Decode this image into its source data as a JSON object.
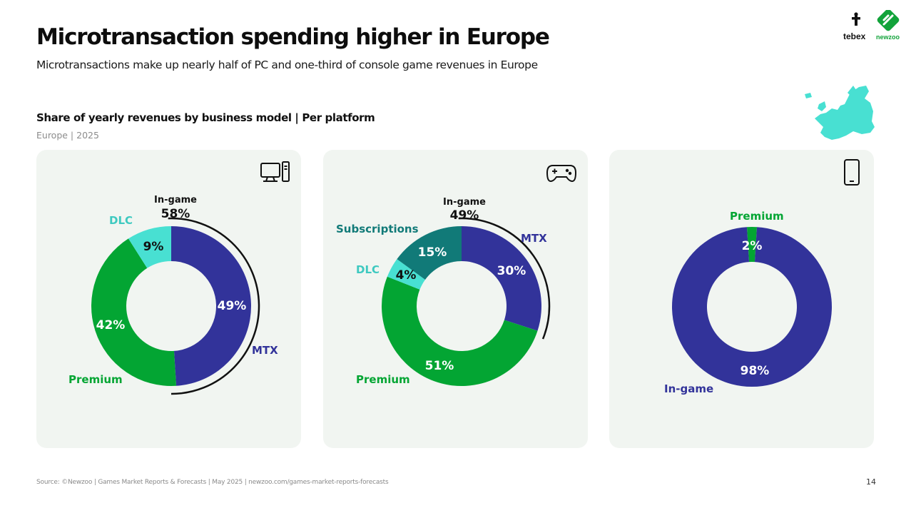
{
  "header": {
    "title": "Microtransaction spending higher in Europe",
    "subtitle": "Microtransactions make up nearly half of PC and one-third of console game revenues in Europe",
    "logo_tebex": "tebex",
    "logo_newzoo": "newzoo"
  },
  "chart_header": {
    "title": "Share of yearly revenues by business model | Per platform",
    "subtitle": "Europe | 2025"
  },
  "icons": {
    "pc": "pc-icon",
    "console": "gamepad-icon",
    "mobile": "smartphone-icon",
    "map": "europe-map-icon"
  },
  "colors": {
    "mtx": "#32339a",
    "premium": "#03a533",
    "dlc": "#48e0d2",
    "subscriptions": "#117a78",
    "panel_bg": "#f1f5f1"
  },
  "chart_data": [
    {
      "type": "pie",
      "platform": "PC",
      "bracket_label": "In-game",
      "bracket_value": "58%",
      "slices": [
        {
          "name": "MTX",
          "value": 49,
          "label": "49%",
          "color": "#32339a"
        },
        {
          "name": "Premium",
          "value": 42,
          "label": "42%",
          "color": "#03a533"
        },
        {
          "name": "DLC",
          "value": 9,
          "label": "9%",
          "color": "#48e0d2"
        }
      ]
    },
    {
      "type": "pie",
      "platform": "Console",
      "bracket_label": "In-game",
      "bracket_value": "49%",
      "slices": [
        {
          "name": "MTX",
          "value": 30,
          "label": "30%",
          "color": "#32339a"
        },
        {
          "name": "Premium",
          "value": 51,
          "label": "51%",
          "color": "#03a533"
        },
        {
          "name": "DLC",
          "value": 4,
          "label": "4%",
          "color": "#48e0d2"
        },
        {
          "name": "Subscriptions",
          "value": 15,
          "label": "15%",
          "color": "#117a78"
        }
      ]
    },
    {
      "type": "pie",
      "platform": "Mobile",
      "slices": [
        {
          "name": "Premium",
          "value": 2,
          "label": "2%",
          "color": "#03a533"
        },
        {
          "name": "In-game",
          "value": 98,
          "label": "98%",
          "color": "#32339a"
        }
      ]
    }
  ],
  "footer": {
    "source": "Source: ©Newzoo | Games Market Reports & Forecasts | May 2025 | newzoo.com/games-market-reports-forecasts",
    "page_number": "14"
  }
}
